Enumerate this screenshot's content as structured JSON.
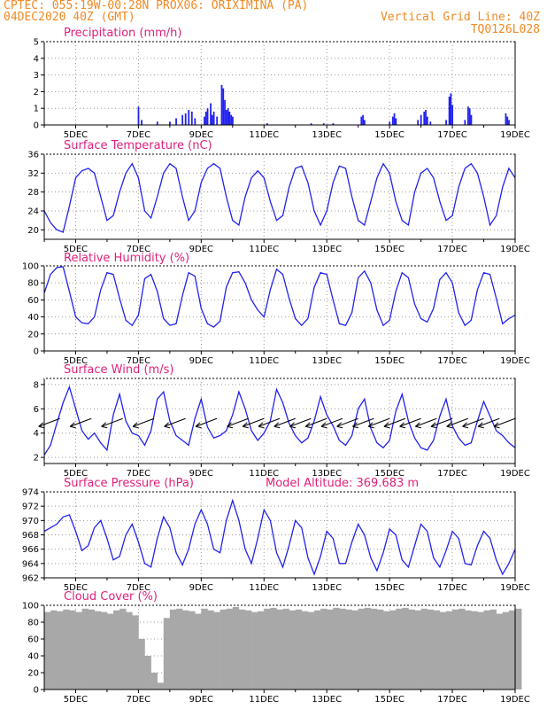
{
  "header": {
    "line1": "CPTEC:   055:19W-00:28N   PROX06: ORIXIMINA (PA)",
    "line2": "04DEC2020 40Z (GMT)",
    "right1": "Vertical Grid Line: 40Z",
    "right2": "TQ0126L028"
  },
  "colors": {
    "series": "#2222ee",
    "cloud": "#a8a8a8",
    "title": "#e0207a",
    "header": "#f08a24"
  },
  "chart_data": [
    {
      "id": "precip",
      "type": "bar",
      "title": "Precipitation (mm/h)",
      "ylim": [
        0,
        5
      ],
      "yticks": [
        "0",
        "1",
        "2",
        "3",
        "4",
        "5"
      ],
      "x_range_days": [
        4.0,
        19.0
      ],
      "xticks": [
        "5DEC",
        "7DEC",
        "9DEC",
        "11DEC",
        "13DEC",
        "15DEC",
        "17DEC",
        "19DEC"
      ],
      "points": [
        [
          7.0,
          1.1
        ],
        [
          7.1,
          0.3
        ],
        [
          7.6,
          0.2
        ],
        [
          8.0,
          0.2
        ],
        [
          8.2,
          0.4
        ],
        [
          8.4,
          0.6
        ],
        [
          8.5,
          0.7
        ],
        [
          8.6,
          0.9
        ],
        [
          8.7,
          0.8
        ],
        [
          8.8,
          0.4
        ],
        [
          9.1,
          0.5
        ],
        [
          9.15,
          0.8
        ],
        [
          9.2,
          1.0
        ],
        [
          9.3,
          1.3
        ],
        [
          9.35,
          0.6
        ],
        [
          9.4,
          0.8
        ],
        [
          9.5,
          0.5
        ],
        [
          9.65,
          2.4
        ],
        [
          9.7,
          2.2
        ],
        [
          9.75,
          1.5
        ],
        [
          9.8,
          0.9
        ],
        [
          9.85,
          1.0
        ],
        [
          9.9,
          0.8
        ],
        [
          9.95,
          0.6
        ],
        [
          10.0,
          0.5
        ],
        [
          11.1,
          0.1
        ],
        [
          12.5,
          0.1
        ],
        [
          12.9,
          0.1
        ],
        [
          13.2,
          0.1
        ],
        [
          14.1,
          0.5
        ],
        [
          14.15,
          0.6
        ],
        [
          14.2,
          0.3
        ],
        [
          15.0,
          0.2
        ],
        [
          15.1,
          0.5
        ],
        [
          15.15,
          0.7
        ],
        [
          15.2,
          0.4
        ],
        [
          15.9,
          0.3
        ],
        [
          16.0,
          0.6
        ],
        [
          16.1,
          0.8
        ],
        [
          16.15,
          0.9
        ],
        [
          16.2,
          0.5
        ],
        [
          16.3,
          0.2
        ],
        [
          16.8,
          0.3
        ],
        [
          16.9,
          1.7
        ],
        [
          16.95,
          1.9
        ],
        [
          17.0,
          1.2
        ],
        [
          17.4,
          0.3
        ],
        [
          17.5,
          1.1
        ],
        [
          17.55,
          1.0
        ],
        [
          17.6,
          0.6
        ],
        [
          18.7,
          0.7
        ],
        [
          18.75,
          0.5
        ],
        [
          18.8,
          0.3
        ]
      ]
    },
    {
      "id": "temp",
      "type": "line",
      "title": "Surface Temperature (nC)",
      "ylim": [
        18,
        36
      ],
      "yticks": [
        "20",
        "24",
        "28",
        "32",
        "36"
      ],
      "yticks_values": [
        20,
        24,
        28,
        32,
        36
      ],
      "x": [
        4.0,
        4.2,
        4.4,
        4.6,
        4.8,
        5.0,
        5.2,
        5.4,
        5.6,
        5.8,
        6.0,
        6.2,
        6.4,
        6.6,
        6.8,
        7.0,
        7.2,
        7.4,
        7.6,
        7.8,
        8.0,
        8.2,
        8.4,
        8.6,
        8.8,
        9.0,
        9.2,
        9.4,
        9.6,
        9.8,
        10.0,
        10.2,
        10.4,
        10.6,
        10.8,
        11.0,
        11.2,
        11.4,
        11.6,
        11.8,
        12.0,
        12.2,
        12.4,
        12.6,
        12.8,
        13.0,
        13.2,
        13.4,
        13.6,
        13.8,
        14.0,
        14.2,
        14.4,
        14.6,
        14.8,
        15.0,
        15.2,
        15.4,
        15.6,
        15.8,
        16.0,
        16.2,
        16.4,
        16.6,
        16.8,
        17.0,
        17.2,
        17.4,
        17.6,
        17.8,
        18.0,
        18.2,
        18.4,
        18.6,
        18.8,
        19.0
      ],
      "values": [
        24,
        21.5,
        20,
        19.5,
        25,
        31,
        32.5,
        33,
        32,
        27,
        22,
        23,
        28,
        32,
        34,
        31,
        24,
        22.5,
        27,
        32,
        34,
        33,
        27,
        22,
        24,
        30,
        33,
        34,
        33,
        27,
        22,
        21,
        27,
        31,
        32.5,
        31,
        26,
        22,
        23,
        29,
        33,
        33.5,
        30,
        24,
        21,
        24,
        30,
        33.5,
        33,
        27,
        22,
        21,
        26,
        31,
        34,
        32,
        26,
        22,
        21,
        28,
        32,
        33,
        31,
        26,
        22,
        23,
        29,
        33,
        34,
        32,
        27,
        21,
        23,
        29,
        33,
        31
      ]
    },
    {
      "id": "rh",
      "type": "line",
      "title": "Relative Humidity (%)",
      "ylim": [
        0,
        100
      ],
      "yticks": [
        "0",
        "20",
        "40",
        "60",
        "80",
        "100"
      ],
      "yticks_values": [
        0,
        20,
        40,
        60,
        80,
        100
      ],
      "x": [
        4.0,
        4.2,
        4.4,
        4.6,
        4.8,
        5.0,
        5.2,
        5.4,
        5.6,
        5.8,
        6.0,
        6.2,
        6.4,
        6.6,
        6.8,
        7.0,
        7.2,
        7.4,
        7.6,
        7.8,
        8.0,
        8.2,
        8.4,
        8.6,
        8.8,
        9.0,
        9.2,
        9.4,
        9.6,
        9.8,
        10.0,
        10.2,
        10.4,
        10.6,
        10.8,
        11.0,
        11.2,
        11.4,
        11.6,
        11.8,
        12.0,
        12.2,
        12.4,
        12.6,
        12.8,
        13.0,
        13.2,
        13.4,
        13.6,
        13.8,
        14.0,
        14.2,
        14.4,
        14.6,
        14.8,
        15.0,
        15.2,
        15.4,
        15.6,
        15.8,
        16.0,
        16.2,
        16.4,
        16.6,
        16.8,
        17.0,
        17.2,
        17.4,
        17.6,
        17.8,
        18.0,
        18.2,
        18.4,
        18.6,
        18.8,
        19.0
      ],
      "values": [
        68,
        90,
        98,
        99,
        70,
        40,
        33,
        32,
        40,
        72,
        92,
        90,
        62,
        36,
        30,
        42,
        85,
        90,
        70,
        38,
        30,
        32,
        65,
        92,
        88,
        50,
        32,
        28,
        35,
        75,
        92,
        93,
        80,
        60,
        48,
        40,
        72,
        96,
        90,
        62,
        38,
        30,
        38,
        75,
        92,
        90,
        60,
        32,
        30,
        45,
        86,
        94,
        80,
        48,
        30,
        36,
        70,
        92,
        86,
        55,
        38,
        34,
        50,
        84,
        92,
        80,
        45,
        30,
        36,
        72,
        92,
        90,
        62,
        32,
        38,
        42
      ]
    },
    {
      "id": "wind",
      "type": "line",
      "title": "Surface Wind (m/s)",
      "ylim": [
        1.5,
        8.5
      ],
      "yticks": [
        "2",
        "4",
        "6",
        "8"
      ],
      "yticks_values": [
        2,
        4,
        6,
        8
      ],
      "x": [
        4.0,
        4.2,
        4.4,
        4.6,
        4.8,
        5.0,
        5.2,
        5.4,
        5.6,
        5.8,
        6.0,
        6.2,
        6.4,
        6.6,
        6.8,
        7.0,
        7.2,
        7.4,
        7.6,
        7.8,
        8.0,
        8.2,
        8.4,
        8.6,
        8.8,
        9.0,
        9.2,
        9.4,
        9.6,
        9.8,
        10.0,
        10.2,
        10.4,
        10.6,
        10.8,
        11.0,
        11.2,
        11.4,
        11.6,
        11.8,
        12.0,
        12.2,
        12.4,
        12.6,
        12.8,
        13.0,
        13.2,
        13.4,
        13.6,
        13.8,
        14.0,
        14.2,
        14.4,
        14.6,
        14.8,
        15.0,
        15.2,
        15.4,
        15.6,
        15.8,
        16.0,
        16.2,
        16.4,
        16.6,
        16.8,
        17.0,
        17.2,
        17.4,
        17.6,
        17.8,
        18.0,
        18.2,
        18.4,
        18.6,
        18.8,
        19.0
      ],
      "values": [
        2.2,
        3.0,
        4.8,
        6.5,
        7.8,
        6.0,
        4.2,
        3.5,
        4.0,
        3.2,
        2.6,
        5.5,
        7.2,
        5.0,
        4.0,
        3.8,
        3.0,
        4.2,
        6.8,
        7.4,
        5.0,
        3.8,
        3.4,
        3.0,
        5.2,
        6.8,
        4.5,
        3.6,
        3.8,
        4.2,
        5.5,
        7.4,
        6.0,
        4.2,
        3.4,
        4.0,
        5.0,
        7.6,
        6.5,
        4.8,
        3.8,
        3.2,
        3.6,
        5.0,
        7.0,
        5.5,
        4.6,
        3.4,
        3.0,
        3.8,
        6.0,
        6.8,
        4.4,
        3.2,
        2.8,
        3.4,
        5.8,
        7.2,
        5.0,
        3.6,
        2.8,
        2.6,
        3.4,
        5.4,
        6.8,
        4.6,
        3.6,
        3.0,
        3.2,
        5.0,
        6.6,
        5.4,
        4.2,
        3.8,
        3.2,
        2.8
      ],
      "arrows_x": [
        4.5,
        5.5,
        6.5,
        7.5,
        8.5,
        9.5,
        10.5,
        11.0,
        11.5,
        12.0,
        12.5,
        13.0,
        13.5,
        14.0,
        14.5,
        15.0,
        15.5,
        16.0,
        16.5,
        17.0,
        17.5,
        18.0,
        18.5,
        19.0
      ]
    },
    {
      "id": "pres",
      "type": "line",
      "title": "Surface Pressure (hPa)",
      "annotation": "Model Altitude: 369.683 m",
      "ylim": [
        962,
        974
      ],
      "yticks": [
        "962",
        "964",
        "966",
        "968",
        "970",
        "972",
        "974"
      ],
      "yticks_values": [
        962,
        964,
        966,
        968,
        970,
        972,
        974
      ],
      "x": [
        4.0,
        4.2,
        4.4,
        4.6,
        4.8,
        5.0,
        5.2,
        5.4,
        5.6,
        5.8,
        6.0,
        6.2,
        6.4,
        6.6,
        6.8,
        7.0,
        7.2,
        7.4,
        7.6,
        7.8,
        8.0,
        8.2,
        8.4,
        8.6,
        8.8,
        9.0,
        9.2,
        9.4,
        9.6,
        9.8,
        10.0,
        10.2,
        10.4,
        10.6,
        10.8,
        11.0,
        11.2,
        11.4,
        11.6,
        11.8,
        12.0,
        12.2,
        12.4,
        12.6,
        12.8,
        13.0,
        13.2,
        13.4,
        13.6,
        13.8,
        14.0,
        14.2,
        14.4,
        14.6,
        14.8,
        15.0,
        15.2,
        15.4,
        15.6,
        15.8,
        16.0,
        16.2,
        16.4,
        16.6,
        16.8,
        17.0,
        17.2,
        17.4,
        17.6,
        17.8,
        18.0,
        18.2,
        18.4,
        18.6,
        18.8,
        19.0
      ],
      "values": [
        968.5,
        969,
        969.5,
        970.5,
        970.8,
        968.5,
        965.8,
        966.5,
        969,
        970,
        967.5,
        964.5,
        965,
        968,
        969.5,
        967,
        964,
        963.5,
        967.5,
        970.5,
        969,
        965.5,
        963.8,
        966,
        969.5,
        971.5,
        969.5,
        966,
        965.5,
        970,
        972.8,
        970,
        966,
        964,
        967.5,
        971.5,
        970,
        965.5,
        963.5,
        966.5,
        970,
        969,
        964.8,
        962.5,
        965,
        968.5,
        967.5,
        964,
        964,
        967,
        969.5,
        968,
        964.8,
        963,
        965.5,
        968.8,
        968,
        964.5,
        963.5,
        966.5,
        969.5,
        968.5,
        964.8,
        963.5,
        965.8,
        968.5,
        967.5,
        964,
        963.8,
        966.5,
        968.5,
        967.5,
        964.5,
        962.5,
        964,
        966
      ]
    },
    {
      "id": "cloud",
      "type": "bar",
      "title": "Cloud Cover (%)",
      "ylim": [
        0,
        100
      ],
      "yticks": [
        "0",
        "20",
        "40",
        "60",
        "80",
        "100"
      ],
      "yticks_values": [
        0,
        20,
        40,
        60,
        80,
        100
      ],
      "x_start": 4.0,
      "x_step": 0.2,
      "values": [
        92,
        94,
        93,
        95,
        94,
        92,
        96,
        95,
        93,
        92,
        90,
        94,
        96,
        92,
        88,
        60,
        40,
        20,
        8,
        85,
        95,
        96,
        94,
        93,
        90,
        96,
        94,
        92,
        95,
        96,
        98,
        95,
        94,
        92,
        93,
        96,
        97,
        95,
        96,
        94,
        95,
        93,
        92,
        94,
        96,
        95,
        97,
        96,
        95,
        94,
        96,
        97,
        96,
        95,
        93,
        94,
        96,
        97,
        95,
        94,
        96,
        95,
        94,
        92,
        93,
        95,
        96,
        94,
        93,
        92,
        94,
        95,
        90,
        92,
        94,
        96
      ]
    }
  ]
}
